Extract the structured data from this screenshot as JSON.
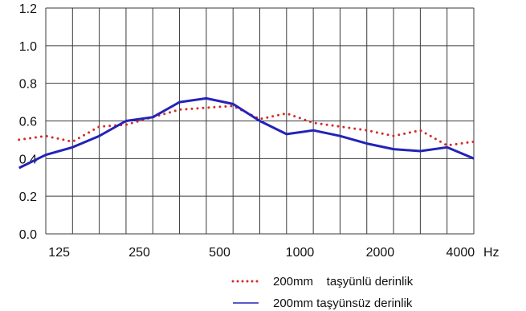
{
  "chart_data": {
    "type": "line",
    "title": "",
    "xlabel": "",
    "ylabel": "",
    "x_unit": "Hz",
    "ylim": [
      0,
      1.2
    ],
    "y_ticks": [
      "0.0",
      "0.2",
      "0.4",
      "0.6",
      "0.8",
      "1.0",
      "1.2"
    ],
    "x_ticks": [
      "125",
      "250",
      "500",
      "1000",
      "2000",
      "4000"
    ],
    "grid": true,
    "legend_position": "bottom-right",
    "x": [
      "100",
      "125",
      "160",
      "200",
      "250",
      "315",
      "400",
      "500",
      "630",
      "800",
      "1000",
      "1250",
      "1600",
      "2000",
      "2500",
      "3150",
      "4000",
      "5000"
    ],
    "series": [
      {
        "name": "200mm    taşyünlü derinlik",
        "style": "dotted",
        "color": "#d42a2a",
        "values": [
          0.5,
          0.52,
          0.49,
          0.57,
          0.58,
          0.62,
          0.66,
          0.67,
          0.68,
          0.61,
          0.64,
          0.59,
          0.57,
          0.55,
          0.52,
          0.55,
          0.47,
          0.49
        ]
      },
      {
        "name": "200mm taşyünsüz derinlik",
        "style": "solid",
        "color": "#2323b8",
        "values": [
          0.35,
          0.42,
          0.46,
          0.52,
          0.6,
          0.62,
          0.7,
          0.72,
          0.69,
          0.6,
          0.53,
          0.55,
          0.52,
          0.48,
          0.45,
          0.44,
          0.46,
          0.4
        ]
      }
    ]
  }
}
